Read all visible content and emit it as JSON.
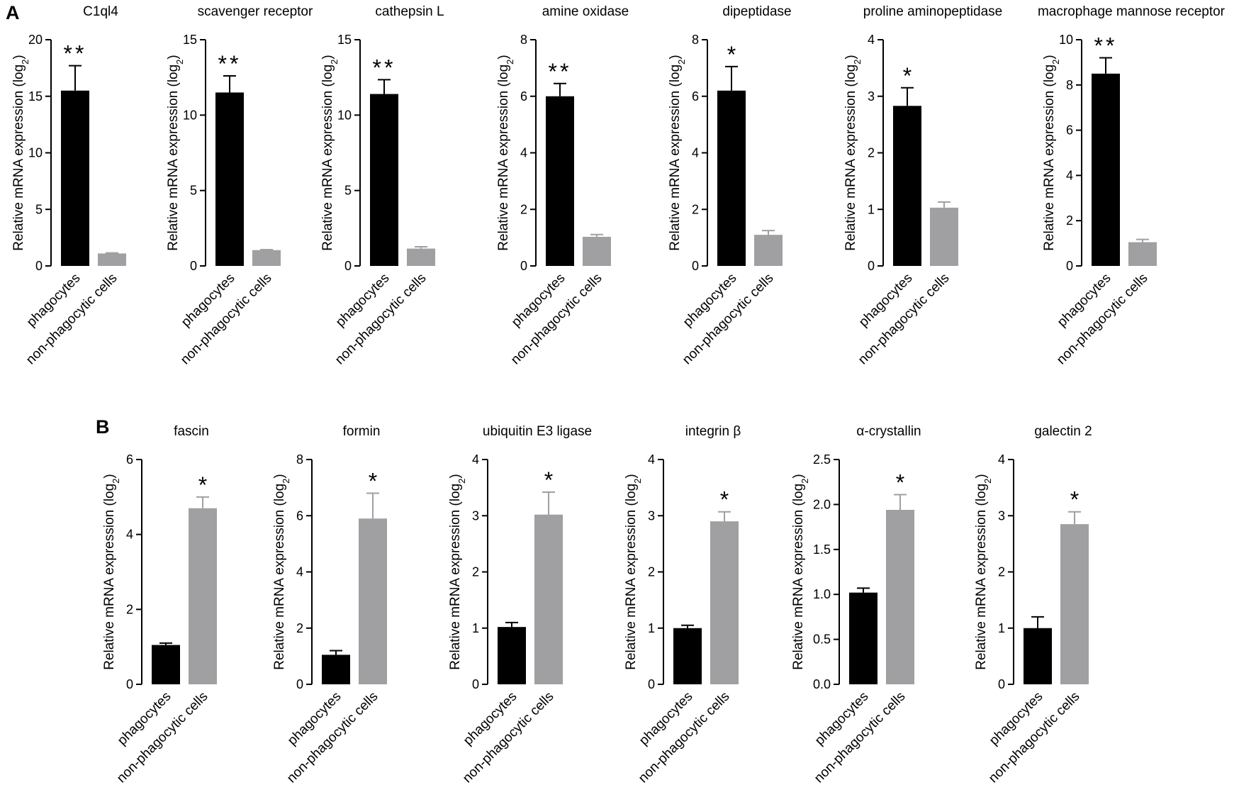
{
  "panels": [
    {
      "letter": "A"
    },
    {
      "letter": "B"
    }
  ],
  "colors": {
    "phagocytes": "#000000",
    "non_phagocytic": "#a0a0a3",
    "axis": "#000000"
  },
  "chart_data": [
    {
      "type": "bar",
      "panel": "A",
      "title": "C1ql4",
      "ylabel": "Relative mRNA expression (log2)",
      "categories": [
        "phagocytes",
        "non-phagocytic cells"
      ],
      "values": [
        15.5,
        1.1
      ],
      "errors": [
        2.2,
        0.05
      ],
      "ylim": [
        0,
        20
      ],
      "yticks": [
        "0",
        "5",
        "10",
        "15",
        "20"
      ],
      "significance": [
        "**",
        ""
      ]
    },
    {
      "type": "bar",
      "panel": "A",
      "title": "scavenger receptor",
      "ylabel": "Relative mRNA expression (log2)",
      "categories": [
        "phagocytes",
        "non-phagocytic cells"
      ],
      "values": [
        11.5,
        1.05
      ],
      "errors": [
        1.1,
        0.03
      ],
      "ylim": [
        0,
        15
      ],
      "yticks": [
        "0",
        "5",
        "10",
        "15"
      ],
      "significance": [
        "**",
        ""
      ]
    },
    {
      "type": "bar",
      "panel": "A",
      "title": "cathepsin L",
      "ylabel": "Relative mRNA expression (log2)",
      "categories": [
        "phagocytes",
        "non-phagocytic cells"
      ],
      "values": [
        11.4,
        1.15
      ],
      "errors": [
        0.95,
        0.12
      ],
      "ylim": [
        0,
        15
      ],
      "yticks": [
        "0",
        "5",
        "10",
        "15"
      ],
      "significance": [
        "**",
        ""
      ]
    },
    {
      "type": "bar",
      "panel": "A",
      "title": "amine oxidase",
      "ylabel": "Relative mRNA expression (log2)",
      "categories": [
        "phagocytes",
        "non-phagocytic cells"
      ],
      "values": [
        6.0,
        1.03
      ],
      "errors": [
        0.45,
        0.08
      ],
      "ylim": [
        0,
        8
      ],
      "yticks": [
        "0",
        "2",
        "4",
        "6",
        "8"
      ],
      "significance": [
        "**",
        ""
      ]
    },
    {
      "type": "bar",
      "panel": "A",
      "title": "dipeptidase",
      "ylabel": "Relative mRNA expression (log2)",
      "categories": [
        "phagocytes",
        "non-phagocytic cells"
      ],
      "values": [
        6.2,
        1.1
      ],
      "errors": [
        0.85,
        0.15
      ],
      "ylim": [
        0,
        8
      ],
      "yticks": [
        "0",
        "2",
        "4",
        "6",
        "8"
      ],
      "significance": [
        "*",
        ""
      ]
    },
    {
      "type": "bar",
      "panel": "A",
      "title": "proline aminopeptidase",
      "ylabel": "Relative mRNA expression (log2)",
      "categories": [
        "phagocytes",
        "non-phagocytic cells"
      ],
      "values": [
        2.83,
        1.03
      ],
      "errors": [
        0.32,
        0.1
      ],
      "ylim": [
        0,
        4
      ],
      "yticks": [
        "0",
        "1",
        "2",
        "3",
        "4"
      ],
      "significance": [
        "*",
        ""
      ]
    },
    {
      "type": "bar",
      "panel": "A",
      "title": "macrophage mannose receptor",
      "ylabel": "Relative mRNA expression (log2)",
      "categories": [
        "phagocytes",
        "non-phagocytic cells"
      ],
      "values": [
        8.5,
        1.05
      ],
      "errors": [
        0.7,
        0.12
      ],
      "ylim": [
        0,
        10
      ],
      "yticks": [
        "0",
        "2",
        "4",
        "6",
        "8",
        "10"
      ],
      "significance": [
        "**",
        ""
      ]
    },
    {
      "type": "bar",
      "panel": "B",
      "title": "fascin",
      "ylabel": "Relative mRNA expression (log2)",
      "categories": [
        "phagocytes",
        "non-phagocytic cells"
      ],
      "values": [
        1.05,
        4.7
      ],
      "errors": [
        0.05,
        0.3
      ],
      "ylim": [
        0,
        6
      ],
      "yticks": [
        "0",
        "2",
        "4",
        "6"
      ],
      "significance": [
        "",
        "*"
      ]
    },
    {
      "type": "bar",
      "panel": "B",
      "title": "formin",
      "ylabel": "Relative mRNA expression (log2)",
      "categories": [
        "phagocytes",
        "non-phagocytic cells"
      ],
      "values": [
        1.05,
        5.9
      ],
      "errors": [
        0.15,
        0.9
      ],
      "ylim": [
        0,
        8
      ],
      "yticks": [
        "0",
        "2",
        "4",
        "6",
        "8"
      ],
      "significance": [
        "",
        "*"
      ]
    },
    {
      "type": "bar",
      "panel": "B",
      "title": "ubiquitin E3 ligase",
      "ylabel": "Relative mRNA expression (log2)",
      "categories": [
        "phagocytes",
        "non-phagocytic cells"
      ],
      "values": [
        1.02,
        3.02
      ],
      "errors": [
        0.08,
        0.4
      ],
      "ylim": [
        0,
        4
      ],
      "yticks": [
        "0",
        "1",
        "2",
        "3",
        "4"
      ],
      "significance": [
        "",
        "*"
      ]
    },
    {
      "type": "bar",
      "panel": "B",
      "title": "integrin β",
      "ylabel": "Relative mRNA expression (log2)",
      "categories": [
        "phagocytes",
        "non-phagocytic cells"
      ],
      "values": [
        1.0,
        2.9
      ],
      "errors": [
        0.05,
        0.17
      ],
      "ylim": [
        0,
        4
      ],
      "yticks": [
        "0",
        "1",
        "2",
        "3",
        "4"
      ],
      "significance": [
        "",
        "*"
      ]
    },
    {
      "type": "bar",
      "panel": "B",
      "title": "α-crystallin",
      "ylabel": "Relative mRNA expression (log2)",
      "categories": [
        "phagocytes",
        "non-phagocytic cells"
      ],
      "values": [
        1.02,
        1.94
      ],
      "errors": [
        0.05,
        0.17
      ],
      "ylim": [
        0,
        2.5
      ],
      "yticks": [
        "0.0",
        "0.5",
        "1.0",
        "1.5",
        "2.0",
        "2.5"
      ],
      "significance": [
        "",
        "*"
      ]
    },
    {
      "type": "bar",
      "panel": "B",
      "title": "galectin 2",
      "ylabel": "Relative mRNA expression (log2)",
      "categories": [
        "phagocytes",
        "non-phagocytic cells"
      ],
      "values": [
        1.0,
        2.85
      ],
      "errors": [
        0.2,
        0.22
      ],
      "ylim": [
        0,
        4
      ],
      "yticks": [
        "0",
        "1",
        "2",
        "3",
        "4"
      ],
      "significance": [
        "",
        "*"
      ]
    }
  ]
}
